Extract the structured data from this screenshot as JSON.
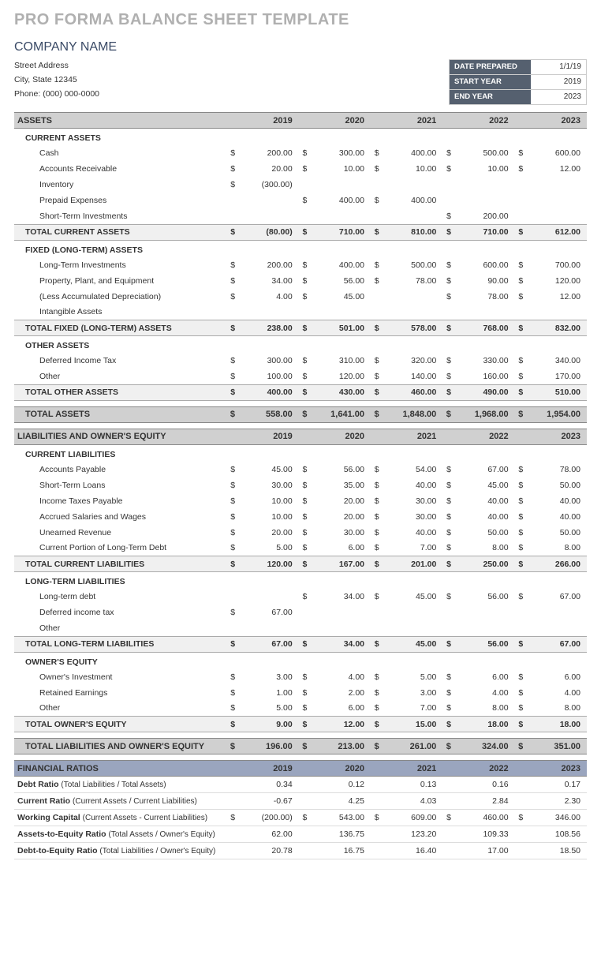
{
  "title": "PRO FORMA BALANCE SHEET TEMPLATE",
  "company": "COMPANY NAME",
  "address": {
    "street": "Street Address",
    "city": "City, State  12345",
    "phone": "Phone: (000) 000-0000"
  },
  "meta": {
    "date_prepared_label": "DATE PREPARED",
    "date_prepared": "1/1/19",
    "start_year_label": "START YEAR",
    "start_year": "2019",
    "end_year_label": "END YEAR",
    "end_year": "2023"
  },
  "years": [
    "2019",
    "2020",
    "2021",
    "2022",
    "2023"
  ],
  "assets": {
    "head": "ASSETS",
    "current_head": "CURRENT ASSETS",
    "current": [
      {
        "label": "Cash",
        "v": [
          "200.00",
          "300.00",
          "400.00",
          "500.00",
          "600.00"
        ],
        "d": [
          "$",
          "$",
          "$",
          "$",
          "$"
        ]
      },
      {
        "label": "Accounts Receivable",
        "v": [
          "20.00",
          "10.00",
          "10.00",
          "10.00",
          "12.00"
        ],
        "d": [
          "$",
          "$",
          "$",
          "$",
          "$"
        ]
      },
      {
        "label": "Inventory",
        "v": [
          "(300.00)",
          "",
          "",
          "",
          ""
        ],
        "d": [
          "$",
          "",
          "",
          "",
          ""
        ]
      },
      {
        "label": "Prepaid Expenses",
        "v": [
          "",
          "400.00",
          "400.00",
          "",
          ""
        ],
        "d": [
          "",
          "$",
          "$",
          "",
          ""
        ]
      },
      {
        "label": "Short-Term Investments",
        "v": [
          "",
          "",
          "",
          "200.00",
          ""
        ],
        "d": [
          "",
          "",
          "",
          "$",
          ""
        ]
      }
    ],
    "current_total_label": "TOTAL CURRENT ASSETS",
    "current_total": {
      "v": [
        "(80.00)",
        "710.00",
        "810.00",
        "710.00",
        "612.00"
      ],
      "d": [
        "$",
        "$",
        "$",
        "$",
        "$"
      ]
    },
    "fixed_head": "FIXED (LONG-TERM) ASSETS",
    "fixed": [
      {
        "label": "Long-Term Investments",
        "v": [
          "200.00",
          "400.00",
          "500.00",
          "600.00",
          "700.00"
        ],
        "d": [
          "$",
          "$",
          "$",
          "$",
          "$"
        ]
      },
      {
        "label": "Property, Plant, and Equipment",
        "v": [
          "34.00",
          "56.00",
          "78.00",
          "90.00",
          "120.00"
        ],
        "d": [
          "$",
          "$",
          "$",
          "$",
          "$"
        ]
      },
      {
        "label": "(Less Accumulated Depreciation)",
        "v": [
          "4.00",
          "45.00",
          "",
          "78.00",
          "12.00"
        ],
        "d": [
          "$",
          "$",
          "",
          "$",
          "$"
        ]
      },
      {
        "label": "Intangible Assets",
        "v": [
          "",
          "",
          "",
          "",
          ""
        ],
        "d": [
          "",
          "",
          "",
          "",
          ""
        ]
      }
    ],
    "fixed_total_label": "TOTAL FIXED (LONG-TERM) ASSETS",
    "fixed_total": {
      "v": [
        "238.00",
        "501.00",
        "578.00",
        "768.00",
        "832.00"
      ],
      "d": [
        "$",
        "$",
        "$",
        "$",
        "$"
      ]
    },
    "other_head": "OTHER ASSETS",
    "other": [
      {
        "label": "Deferred Income Tax",
        "v": [
          "300.00",
          "310.00",
          "320.00",
          "330.00",
          "340.00"
        ],
        "d": [
          "$",
          "$",
          "$",
          "$",
          "$"
        ]
      },
      {
        "label": "Other",
        "v": [
          "100.00",
          "120.00",
          "140.00",
          "160.00",
          "170.00"
        ],
        "d": [
          "$",
          "$",
          "$",
          "$",
          "$"
        ]
      }
    ],
    "other_total_label": "TOTAL OTHER ASSETS",
    "other_total": {
      "v": [
        "400.00",
        "430.00",
        "460.00",
        "490.00",
        "510.00"
      ],
      "d": [
        "$",
        "$",
        "$",
        "$",
        "$"
      ]
    },
    "grand_label": "TOTAL ASSETS",
    "grand": {
      "v": [
        "558.00",
        "1,641.00",
        "1,848.00",
        "1,968.00",
        "1,954.00"
      ],
      "d": [
        "$",
        "$",
        "$",
        "$",
        "$"
      ]
    }
  },
  "liab": {
    "head": "LIABILITIES AND OWNER'S EQUITY",
    "cl_head": "CURRENT LIABILITIES",
    "cl": [
      {
        "label": "Accounts Payable",
        "v": [
          "45.00",
          "56.00",
          "54.00",
          "67.00",
          "78.00"
        ],
        "d": [
          "$",
          "$",
          "$",
          "$",
          "$"
        ]
      },
      {
        "label": "Short-Term Loans",
        "v": [
          "30.00",
          "35.00",
          "40.00",
          "45.00",
          "50.00"
        ],
        "d": [
          "$",
          "$",
          "$",
          "$",
          "$"
        ]
      },
      {
        "label": "Income Taxes Payable",
        "v": [
          "10.00",
          "20.00",
          "30.00",
          "40.00",
          "40.00"
        ],
        "d": [
          "$",
          "$",
          "$",
          "$",
          "$"
        ]
      },
      {
        "label": "Accrued Salaries and Wages",
        "v": [
          "10.00",
          "20.00",
          "30.00",
          "40.00",
          "40.00"
        ],
        "d": [
          "$",
          "$",
          "$",
          "$",
          "$"
        ]
      },
      {
        "label": "Unearned Revenue",
        "v": [
          "20.00",
          "30.00",
          "40.00",
          "50.00",
          "50.00"
        ],
        "d": [
          "$",
          "$",
          "$",
          "$",
          "$"
        ]
      },
      {
        "label": "Current Portion of Long-Term Debt",
        "v": [
          "5.00",
          "6.00",
          "7.00",
          "8.00",
          "8.00"
        ],
        "d": [
          "$",
          "$",
          "$",
          "$",
          "$"
        ]
      }
    ],
    "cl_total_label": "TOTAL CURRENT LIABILITIES",
    "cl_total": {
      "v": [
        "120.00",
        "167.00",
        "201.00",
        "250.00",
        "266.00"
      ],
      "d": [
        "$",
        "$",
        "$",
        "$",
        "$"
      ]
    },
    "lt_head": "LONG-TERM LIABILITIES",
    "lt": [
      {
        "label": "Long-term debt",
        "v": [
          "",
          "34.00",
          "45.00",
          "56.00",
          "67.00"
        ],
        "d": [
          "",
          "$",
          "$",
          "$",
          "$"
        ]
      },
      {
        "label": "Deferred income tax",
        "v": [
          "67.00",
          "",
          "",
          "",
          ""
        ],
        "d": [
          "$",
          "",
          "",
          "",
          ""
        ]
      },
      {
        "label": "Other",
        "v": [
          "",
          "",
          "",
          "",
          ""
        ],
        "d": [
          "",
          "",
          "",
          "",
          ""
        ]
      }
    ],
    "lt_total_label": "TOTAL LONG-TERM LIABILITIES",
    "lt_total": {
      "v": [
        "67.00",
        "34.00",
        "45.00",
        "56.00",
        "67.00"
      ],
      "d": [
        "$",
        "$",
        "$",
        "$",
        "$"
      ]
    },
    "oe_head": "OWNER'S EQUITY",
    "oe": [
      {
        "label": "Owner's Investment",
        "v": [
          "3.00",
          "4.00",
          "5.00",
          "6.00",
          "6.00"
        ],
        "d": [
          "$",
          "$",
          "$",
          "$",
          "$"
        ]
      },
      {
        "label": "Retained Earnings",
        "v": [
          "1.00",
          "2.00",
          "3.00",
          "4.00",
          "4.00"
        ],
        "d": [
          "$",
          "$",
          "$",
          "$",
          "$"
        ]
      },
      {
        "label": "Other",
        "v": [
          "5.00",
          "6.00",
          "7.00",
          "8.00",
          "8.00"
        ],
        "d": [
          "$",
          "$",
          "$",
          "$",
          "$"
        ]
      }
    ],
    "oe_total_label": "TOTAL OWNER'S EQUITY",
    "oe_total": {
      "v": [
        "9.00",
        "12.00",
        "15.00",
        "18.00",
        "18.00"
      ],
      "d": [
        "$",
        "$",
        "$",
        "$",
        "$"
      ]
    },
    "grand_label": "TOTAL LIABILITIES AND OWNER'S EQUITY",
    "grand": {
      "v": [
        "196.00",
        "213.00",
        "261.00",
        "324.00",
        "351.00"
      ],
      "d": [
        "$",
        "$",
        "$",
        "$",
        "$"
      ]
    }
  },
  "ratios": {
    "head": "FINANCIAL RATIOS",
    "rows": [
      {
        "label": "Debt Ratio",
        "desc": "(Total Liabilities / Total Assets)",
        "v": [
          "0.34",
          "0.12",
          "0.13",
          "0.16",
          "0.17"
        ],
        "d": [
          "",
          "",
          "",
          "",
          ""
        ]
      },
      {
        "label": "Current Ratio",
        "desc": "(Current Assets / Current Liabilities)",
        "v": [
          "-0.67",
          "4.25",
          "4.03",
          "2.84",
          "2.30"
        ],
        "d": [
          "",
          "",
          "",
          "",
          ""
        ]
      },
      {
        "label": "Working Capital",
        "desc": "(Current Assets - Current Liabilities)",
        "v": [
          "(200.00)",
          "543.00",
          "609.00",
          "460.00",
          "346.00"
        ],
        "d": [
          "$",
          "$",
          "$",
          "$",
          "$"
        ]
      },
      {
        "label": "Assets-to-Equity Ratio",
        "desc": "(Total Assets / Owner's Equity)",
        "v": [
          "62.00",
          "136.75",
          "123.20",
          "109.33",
          "108.56"
        ],
        "d": [
          "",
          "",
          "",
          "",
          ""
        ]
      },
      {
        "label": "Debt-to-Equity Ratio",
        "desc": "(Total Liabilities / Owner's Equity)",
        "v": [
          "20.78",
          "16.75",
          "16.40",
          "17.00",
          "18.50"
        ],
        "d": [
          "",
          "",
          "",
          "",
          ""
        ]
      }
    ]
  },
  "colors": {
    "title": "#b0b0b0",
    "company": "#3a4a66",
    "meta_bg": "#55606f",
    "section_bg": "#d0d0d0",
    "subtotal_bg": "#f0f0f0",
    "ratios_bg": "#9aa5be"
  }
}
